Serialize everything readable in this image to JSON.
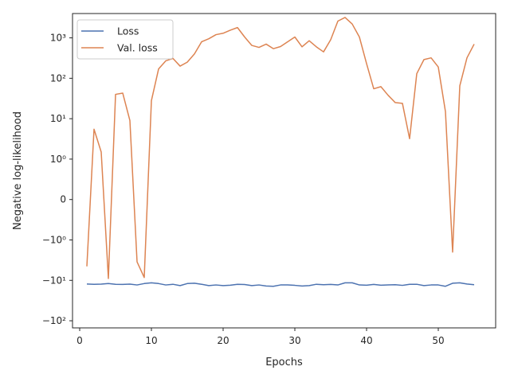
{
  "chart_data": {
    "type": "line",
    "xlabel": "Epochs",
    "ylabel": "Negative log-likelihood",
    "xlim": [
      -1,
      58
    ],
    "yscale": "symlog",
    "ylim": [
      -150,
      4000
    ],
    "grid": false,
    "legend_placement": "top-left",
    "x_ticks": [
      0,
      10,
      20,
      30,
      40,
      50
    ],
    "x_tick_labels": [
      "0",
      "10",
      "20",
      "30",
      "40",
      "50"
    ],
    "y_ticks": [
      -100,
      -10,
      -1,
      0,
      1,
      10,
      100,
      1000
    ],
    "y_tick_labels": [
      "−10²",
      "−10¹",
      "−10⁰",
      "0",
      "10⁰",
      "10¹",
      "10²",
      "10³"
    ],
    "x": [
      1,
      2,
      3,
      4,
      5,
      6,
      7,
      8,
      9,
      10,
      11,
      12,
      13,
      14,
      15,
      16,
      17,
      18,
      19,
      20,
      21,
      22,
      23,
      24,
      25,
      26,
      27,
      28,
      29,
      30,
      31,
      32,
      33,
      34,
      35,
      36,
      37,
      38,
      39,
      40,
      41,
      42,
      43,
      44,
      45,
      46,
      47,
      48,
      49,
      50,
      51,
      52,
      53,
      54,
      55
    ],
    "series": [
      {
        "name": "Loss",
        "color": "#4c72b0",
        "values": [
          -12.3,
          -12.5,
          -12.4,
          -12.0,
          -12.5,
          -12.6,
          -12.4,
          -13.0,
          -12.0,
          -11.5,
          -12.0,
          -13.0,
          -12.5,
          -13.5,
          -12.0,
          -11.8,
          -12.5,
          -13.5,
          -13.0,
          -13.5,
          -13.2,
          -12.5,
          -12.7,
          -13.5,
          -13.0,
          -13.8,
          -14.0,
          -13.0,
          -13.0,
          -13.3,
          -13.8,
          -13.5,
          -12.5,
          -12.8,
          -12.6,
          -13.0,
          -11.5,
          -11.5,
          -13.0,
          -13.2,
          -12.6,
          -13.2,
          -13.0,
          -12.8,
          -13.3,
          -12.5,
          -12.5,
          -13.5,
          -13.0,
          -13.0,
          -14.0,
          -11.8,
          -11.5,
          -12.3,
          -12.8
        ]
      },
      {
        "name": "Val. loss",
        "color": "#dd8452",
        "values": [
          -4.5,
          5.5,
          1.5,
          -9.0,
          40,
          43,
          9,
          -3.5,
          -8.5,
          28,
          170,
          270,
          310,
          200,
          250,
          400,
          800,
          950,
          1200,
          1300,
          1550,
          1800,
          1050,
          650,
          580,
          700,
          540,
          610,
          800,
          1050,
          600,
          850,
          600,
          450,
          900,
          2600,
          3200,
          2200,
          1050,
          230,
          55,
          62,
          38,
          25,
          24,
          3.2,
          130,
          290,
          320,
          190,
          15,
          -2.0,
          65,
          320,
          700
        ]
      }
    ]
  }
}
